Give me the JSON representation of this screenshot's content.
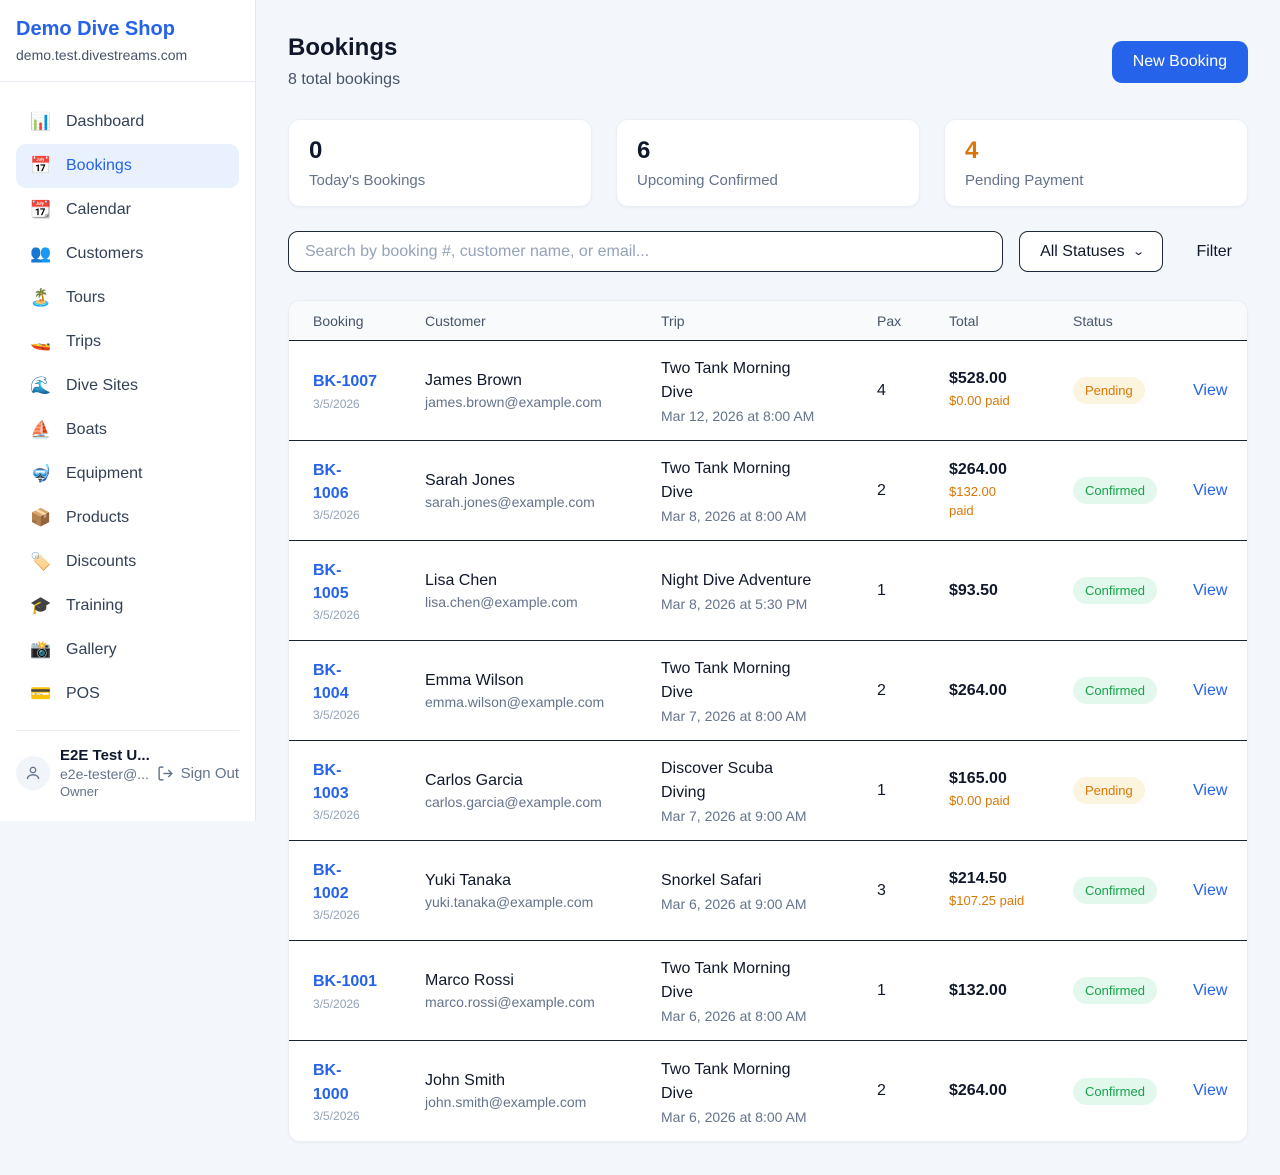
{
  "colors": {
    "accent_blue": "#2563eb",
    "orange": "#d97706",
    "green": "#16a34a",
    "pending_bg": "#fdf4df",
    "confirmed_bg": "#e3f8ec",
    "row_border": "#1a2332"
  },
  "sidebar": {
    "brand": {
      "name": "Demo Dive Shop",
      "domain": "demo.test.divestreams.com"
    },
    "items": [
      {
        "label": "Dashboard",
        "icon_glyph": "📊",
        "icon_name": "bar-chart-icon",
        "active": false
      },
      {
        "label": "Bookings",
        "icon_glyph": "📅",
        "icon_name": "calendar-icon",
        "active": true
      },
      {
        "label": "Calendar",
        "icon_glyph": "📆",
        "icon_name": "tear-off-calendar-icon",
        "active": false
      },
      {
        "label": "Customers",
        "icon_glyph": "👥",
        "icon_name": "people-icon",
        "active": false
      },
      {
        "label": "Tours",
        "icon_glyph": "🏝️",
        "icon_name": "island-icon",
        "active": false
      },
      {
        "label": "Trips",
        "icon_glyph": "🚤",
        "icon_name": "speedboat-icon",
        "active": false
      },
      {
        "label": "Dive Sites",
        "icon_glyph": "🌊",
        "icon_name": "wave-icon",
        "active": false
      },
      {
        "label": "Boats",
        "icon_glyph": "⛵",
        "icon_name": "sailboat-icon",
        "active": false
      },
      {
        "label": "Equipment",
        "icon_glyph": "🤿",
        "icon_name": "diving-mask-icon",
        "active": false
      },
      {
        "label": "Products",
        "icon_glyph": "📦",
        "icon_name": "package-icon",
        "active": false
      },
      {
        "label": "Discounts",
        "icon_glyph": "🏷️",
        "icon_name": "tag-icon",
        "active": false
      },
      {
        "label": "Training",
        "icon_glyph": "🎓",
        "icon_name": "graduation-cap-icon",
        "active": false
      },
      {
        "label": "Gallery",
        "icon_glyph": "📸",
        "icon_name": "camera-icon",
        "active": false
      },
      {
        "label": "POS",
        "icon_glyph": "💳",
        "icon_name": "credit-card-icon",
        "active": false
      }
    ],
    "user": {
      "name": "E2E Test U...",
      "email": "e2e-tester@...",
      "role": "Owner",
      "sign_out_label": "Sign Out"
    }
  },
  "header": {
    "title": "Bookings",
    "subtitle": "8 total bookings",
    "new_booking_label": "New Booking"
  },
  "stats": [
    {
      "value": "0",
      "label": "Today's Bookings",
      "accent": false
    },
    {
      "value": "6",
      "label": "Upcoming Confirmed",
      "accent": false
    },
    {
      "value": "4",
      "label": "Pending Payment",
      "accent": true
    }
  ],
  "filters": {
    "search_placeholder": "Search by booking #, customer name, or email...",
    "status_selected": "All Statuses",
    "filter_label": "Filter"
  },
  "table": {
    "columns": [
      "Booking",
      "Customer",
      "Trip",
      "Pax",
      "Total",
      "Status"
    ],
    "view_label": "View",
    "status_styles": {
      "Pending": {
        "bg": "#fdf4df",
        "text": "#d97706"
      },
      "Confirmed": {
        "bg": "#e3f8ec",
        "text": "#16a34a"
      }
    },
    "rows": [
      {
        "id": "BK-1007",
        "date": "3/5/2026",
        "customer": "James Brown",
        "email": "james.brown@example.com",
        "trip": "Two Tank Morning\nDive",
        "trip_date": "Mar 12, 2026 at 8:00 AM",
        "pax": "4",
        "total": "$528.00",
        "paid": "$0.00 paid",
        "status": "Pending"
      },
      {
        "id": "BK-\n1006",
        "date": "3/5/2026",
        "customer": "Sarah Jones",
        "email": "sarah.jones@example.com",
        "trip": "Two Tank Morning\nDive",
        "trip_date": "Mar 8, 2026 at 8:00 AM",
        "pax": "2",
        "total": "$264.00",
        "paid": "$132.00\npaid",
        "status": "Confirmed"
      },
      {
        "id": "BK-\n1005",
        "date": "3/5/2026",
        "customer": "Lisa Chen",
        "email": "lisa.chen@example.com",
        "trip": "Night Dive Adventure",
        "trip_date": "Mar 8, 2026 at 5:30 PM",
        "pax": "1",
        "total": "$93.50",
        "paid": null,
        "status": "Confirmed"
      },
      {
        "id": "BK-\n1004",
        "date": "3/5/2026",
        "customer": "Emma Wilson",
        "email": "emma.wilson@example.com",
        "trip": "Two Tank Morning\nDive",
        "trip_date": "Mar 7, 2026 at 8:00 AM",
        "pax": "2",
        "total": "$264.00",
        "paid": null,
        "status": "Confirmed"
      },
      {
        "id": "BK-\n1003",
        "date": "3/5/2026",
        "customer": "Carlos Garcia",
        "email": "carlos.garcia@example.com",
        "trip": "Discover Scuba\nDiving",
        "trip_date": "Mar 7, 2026 at 9:00 AM",
        "pax": "1",
        "total": "$165.00",
        "paid": "$0.00 paid",
        "status": "Pending"
      },
      {
        "id": "BK-\n1002",
        "date": "3/5/2026",
        "customer": "Yuki Tanaka",
        "email": "yuki.tanaka@example.com",
        "trip": "Snorkel Safari",
        "trip_date": "Mar 6, 2026 at 9:00 AM",
        "pax": "3",
        "total": "$214.50",
        "paid": "$107.25 paid",
        "status": "Confirmed"
      },
      {
        "id": "BK-1001",
        "date": "3/5/2026",
        "customer": "Marco Rossi",
        "email": "marco.rossi@example.com",
        "trip": "Two Tank Morning\nDive",
        "trip_date": "Mar 6, 2026 at 8:00 AM",
        "pax": "1",
        "total": "$132.00",
        "paid": null,
        "status": "Confirmed"
      },
      {
        "id": "BK-\n1000",
        "date": "3/5/2026",
        "customer": "John Smith",
        "email": "john.smith@example.com",
        "trip": "Two Tank Morning\nDive",
        "trip_date": "Mar 6, 2026 at 8:00 AM",
        "pax": "2",
        "total": "$264.00",
        "paid": null,
        "status": "Confirmed"
      }
    ]
  }
}
